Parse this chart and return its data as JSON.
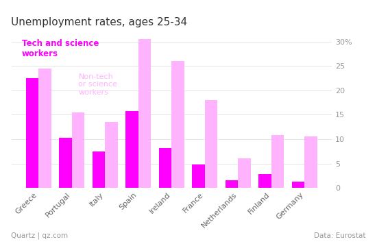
{
  "title": "Unemployment rates, ages 25-34",
  "categories": [
    "Greece",
    "Portugal",
    "Italy",
    "Spain",
    "Ireland",
    "France",
    "Netherlands",
    "Finland",
    "Germany"
  ],
  "tech": [
    22.5,
    10.2,
    7.5,
    15.8,
    8.2,
    4.8,
    1.5,
    2.8,
    1.3
  ],
  "nontech": [
    24.5,
    15.5,
    13.5,
    30.5,
    26.0,
    18.0,
    6.0,
    10.8,
    10.5
  ],
  "tech_color": "#FF00FF",
  "nontech_color": "#FFB3FF",
  "background_color": "#FFFFFF",
  "yticks": [
    0,
    5,
    10,
    15,
    20,
    25,
    30
  ],
  "ytick_labels": [
    "0",
    "5",
    "10",
    "15",
    "20",
    "25",
    "30%"
  ],
  "ylim": [
    0,
    32
  ],
  "annotation_tech": "Tech and science\nworkers",
  "annotation_nontech": "Non-tech\nor science\nworkers",
  "footer_left": "Quartz | qz.com",
  "footer_right": "Data: Eurostat",
  "title_fontsize": 11,
  "tick_fontsize": 8,
  "bar_width": 0.38,
  "grid_color": "#DDDDDD",
  "grid_alpha": 0.8
}
